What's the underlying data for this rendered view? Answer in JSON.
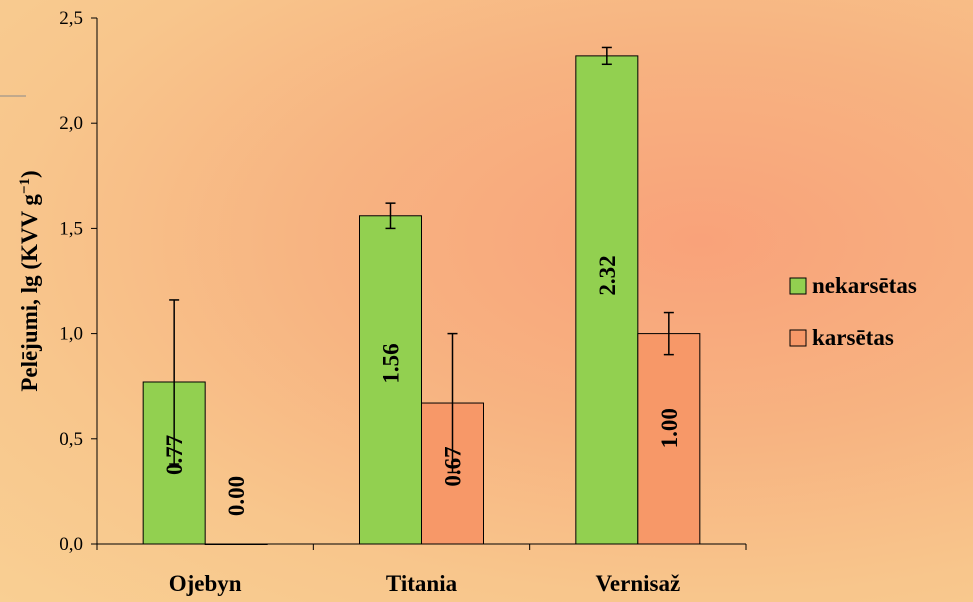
{
  "chart_data": {
    "type": "bar",
    "categories": [
      "Ojebyn",
      "Titania",
      "Vernisaž"
    ],
    "ylabel": "Pelējumi, lg (KVV g",
    "ylabel_sup": "−1",
    "ylabel_close": ")",
    "ylim": [
      0,
      2.5
    ],
    "yticks": [
      0,
      0.5,
      1.0,
      1.5,
      2.0,
      2.5
    ],
    "ytick_labels": [
      "0,0",
      "0,5",
      "1,0",
      "1,5",
      "2,0",
      "2,5"
    ],
    "grid": false,
    "legend_position": "right",
    "series": [
      {
        "name": "nekarsētas",
        "color": "#92d050",
        "values": [
          0.77,
          1.56,
          2.32
        ],
        "errors": [
          0.39,
          0.06,
          0.04
        ],
        "labels": [
          "0.77",
          "1.56",
          "2.32"
        ]
      },
      {
        "name": "karsētas",
        "color": "#f79868",
        "values": [
          0.0,
          0.67,
          1.0
        ],
        "errors": [
          0.0,
          0.33,
          0.1
        ],
        "labels": [
          "0.00",
          "0.67",
          "1.00"
        ]
      }
    ]
  }
}
